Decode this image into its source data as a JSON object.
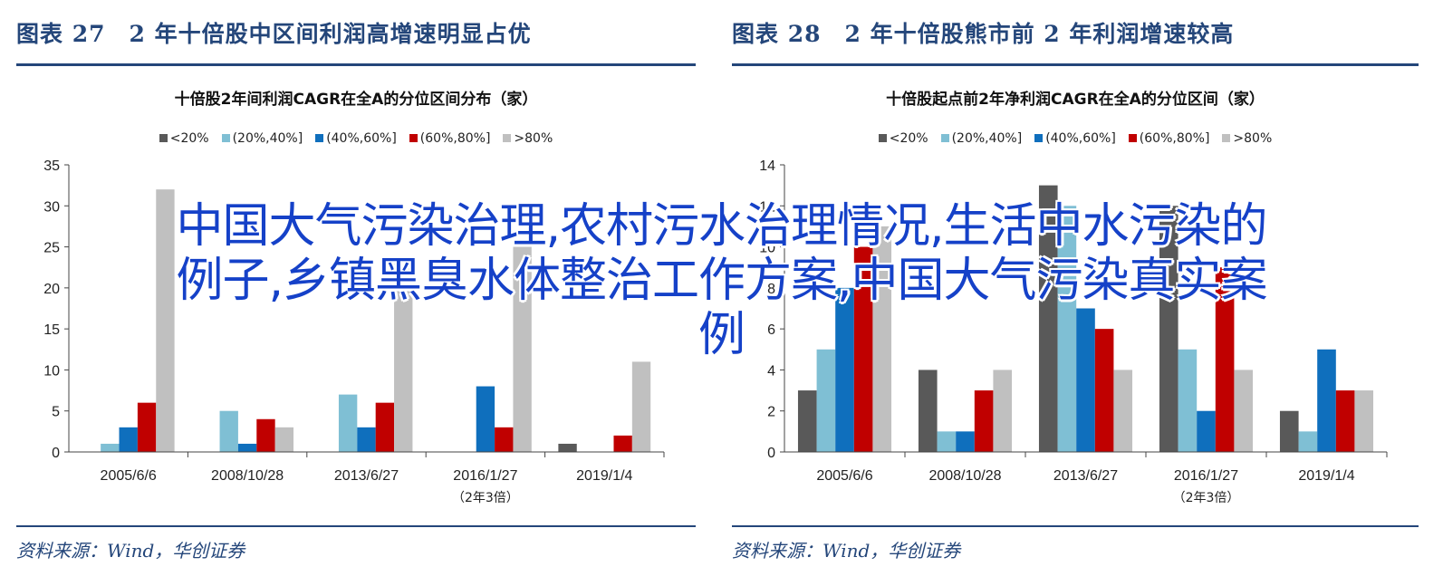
{
  "left": {
    "figure_title": "图表 27　2 年十倍股中区间利润高增速明显占优",
    "source": "资料来源：Wind，华创证券",
    "chart_data": {
      "type": "bar",
      "title": "十倍股2年间利润CAGR在全A的分位区间分布（家）",
      "categories": [
        "2005/6/6",
        "2008/10/28",
        "2013/6/27",
        "2016/1/27",
        "2019/1/4"
      ],
      "category_sublabels": [
        "",
        "",
        "",
        "（2年3倍）",
        ""
      ],
      "series": [
        {
          "name": "<20%",
          "color": "#595959",
          "values": [
            0,
            0,
            0,
            0,
            1
          ]
        },
        {
          "name": "(20%,40%]",
          "color": "#7fbfd4",
          "values": [
            1,
            5,
            7,
            0,
            0
          ]
        },
        {
          "name": "(40%,60%]",
          "color": "#0f6fbd",
          "values": [
            3,
            1,
            3,
            8,
            0
          ]
        },
        {
          "name": "(60%,80%]",
          "color": "#c00000",
          "values": [
            6,
            4,
            6,
            3,
            2
          ]
        },
        {
          "name": ">80%",
          "color": "#c0c0c0",
          "values": [
            32,
            3,
            23,
            25,
            11
          ]
        }
      ],
      "ylim": [
        0,
        35
      ],
      "yticks": [
        0,
        5,
        10,
        15,
        20,
        25,
        30,
        35
      ],
      "legend_position": "top"
    }
  },
  "right": {
    "figure_title": "图表 28　2 年十倍股熊市前 2 年利润增速较高",
    "source": "资料来源：Wind，华创证券",
    "chart_data": {
      "type": "bar",
      "title": "十倍股起点前2年净利润CAGR在全A的分位区间（家）",
      "categories": [
        "2005/6/6",
        "2008/10/28",
        "2013/6/27",
        "2016/1/27",
        "2019/1/4"
      ],
      "category_sublabels": [
        "",
        "",
        "",
        "（2年3倍）",
        ""
      ],
      "series": [
        {
          "name": "<20%",
          "color": "#595959",
          "values": [
            3,
            4,
            13,
            12,
            2
          ]
        },
        {
          "name": "(20%,40%]",
          "color": "#7fbfd4",
          "values": [
            5,
            1,
            12,
            5,
            1
          ]
        },
        {
          "name": "(40%,60%]",
          "color": "#0f6fbd",
          "values": [
            8,
            1,
            7,
            2,
            5
          ]
        },
        {
          "name": "(60%,80%]",
          "color": "#c00000",
          "values": [
            10,
            3,
            6,
            9,
            3
          ]
        },
        {
          "name": ">80%",
          "color": "#c0c0c0",
          "values": [
            11,
            4,
            4,
            4,
            3
          ]
        }
      ],
      "ylim": [
        0,
        14
      ],
      "yticks": [
        0,
        2,
        4,
        6,
        8,
        10,
        12,
        14
      ],
      "legend_position": "top"
    }
  },
  "overlay": {
    "line1": "中国大气污染治理,农村污水治理情况,生活中水污染的",
    "line2": "例子,乡镇黑臭水体整治工作方案,中国大气污染真实案",
    "line3": "例"
  }
}
